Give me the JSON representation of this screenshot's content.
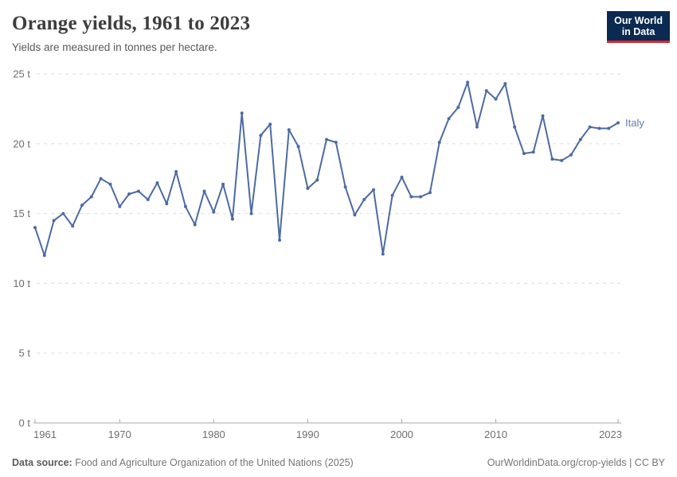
{
  "header": {
    "title": "Orange yields, 1961 to 2023",
    "subtitle": "Yields are measured in tonnes per hectare.",
    "logo": {
      "line1": "Our World",
      "line2": "in Data"
    }
  },
  "footer": {
    "source_label": "Data source:",
    "source_text": " Food and Agriculture Organization of the United Nations (2025)",
    "credits_right": "OurWorldinData.org/crop-yields | CC BY"
  },
  "colors": {
    "line": "#4c6ba3",
    "series_label": "#5b7db5",
    "grid": "#e2e2e2",
    "axis": "#a9a9a9",
    "tick_text": "#6e6e6e",
    "logo_bg": "#0b2a51",
    "logo_stripe": "#d7282e"
  },
  "chart_data": {
    "type": "line",
    "title": "Orange yields, 1961 to 2023",
    "subtitle": "Yields are measured in tonnes per hectare.",
    "unit": "t",
    "xlabel": "",
    "ylabel": "tonnes per hectare",
    "xlim": [
      1961,
      2023
    ],
    "ylim": [
      0,
      25
    ],
    "grid": true,
    "legend": "end-of-line-label",
    "x_ticks": [
      1961,
      1970,
      1980,
      1990,
      2000,
      2010,
      2023
    ],
    "y_ticks": [
      0,
      5,
      10,
      15,
      20,
      25
    ],
    "series": [
      {
        "name": "Italy",
        "x": [
          1961,
          1962,
          1963,
          1964,
          1965,
          1966,
          1967,
          1968,
          1969,
          1970,
          1971,
          1972,
          1973,
          1974,
          1975,
          1976,
          1977,
          1978,
          1979,
          1980,
          1981,
          1982,
          1983,
          1984,
          1985,
          1986,
          1987,
          1988,
          1989,
          1990,
          1991,
          1992,
          1993,
          1994,
          1995,
          1996,
          1997,
          1998,
          1999,
          2000,
          2001,
          2002,
          2003,
          2004,
          2005,
          2006,
          2007,
          2008,
          2009,
          2010,
          2011,
          2012,
          2013,
          2014,
          2015,
          2016,
          2017,
          2018,
          2019,
          2020,
          2021,
          2022,
          2023
        ],
        "values": [
          14.0,
          12.0,
          14.5,
          15.0,
          14.1,
          15.6,
          16.2,
          17.5,
          17.1,
          15.5,
          16.4,
          16.6,
          16.0,
          17.2,
          15.7,
          18.0,
          15.5,
          14.2,
          16.6,
          15.1,
          17.1,
          14.6,
          22.2,
          15.0,
          20.6,
          21.4,
          13.1,
          21.0,
          19.8,
          16.8,
          17.4,
          20.3,
          20.1,
          16.9,
          14.9,
          16.0,
          16.7,
          12.1,
          16.3,
          17.6,
          16.2,
          16.2,
          16.5,
          20.1,
          21.8,
          22.6,
          24.4,
          21.2,
          23.8,
          23.2,
          24.3,
          21.2,
          19.3,
          19.4,
          22.0,
          18.9,
          18.8,
          19.2,
          20.3,
          21.2,
          21.1,
          21.1,
          21.5
        ]
      }
    ]
  }
}
